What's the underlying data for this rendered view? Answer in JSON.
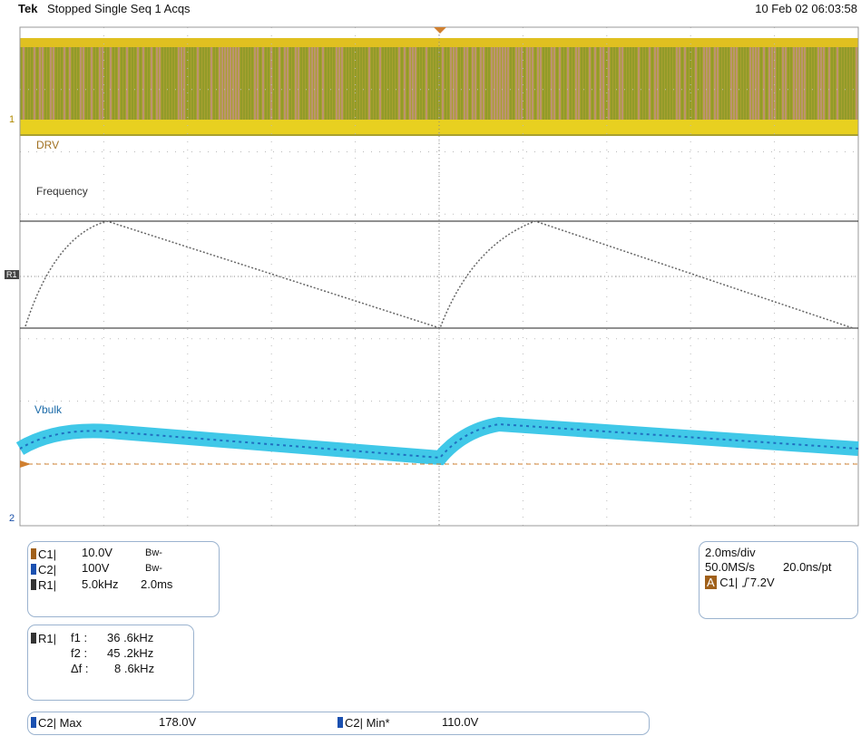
{
  "header": {
    "brand": "Tek",
    "status": "Stopped Single Seq 1 Acqs",
    "datetime": "10 Feb 02 06:03:58"
  },
  "graticule": {
    "ch1_marker": "1",
    "drv_label": "DRV",
    "frequency_label": "Frequency",
    "ref_marker": "R1",
    "vbulk_label": "Vbulk",
    "ch2_marker": "2"
  },
  "channels": [
    {
      "name": "C1|",
      "scale": "10.0V",
      "bw": "Bw-"
    },
    {
      "name": "C2|",
      "scale": "100V",
      "bw": "Bw-"
    },
    {
      "name": "R1|",
      "scale": "5.0kHz",
      "time": "2.0ms"
    }
  ],
  "cursors": {
    "name": "R1|",
    "rows": [
      [
        "f1 :",
        "36 .6kHz"
      ],
      [
        "f2 :",
        "45 .2kHz"
      ],
      [
        "Δf :",
        "8 .6kHz"
      ]
    ]
  },
  "timebase": {
    "scale": "2.0ms/div",
    "rate": "50.0MS/s",
    "resolution": "20.0ns/pt",
    "trigger_mode": "A",
    "trigger_source": "C1|",
    "trigger_level": "7.2V"
  },
  "measurements": [
    {
      "name": "C2| Max",
      "value": "178.0V"
    },
    {
      "name": "C2| Min*",
      "value": "110.0V"
    }
  ]
}
